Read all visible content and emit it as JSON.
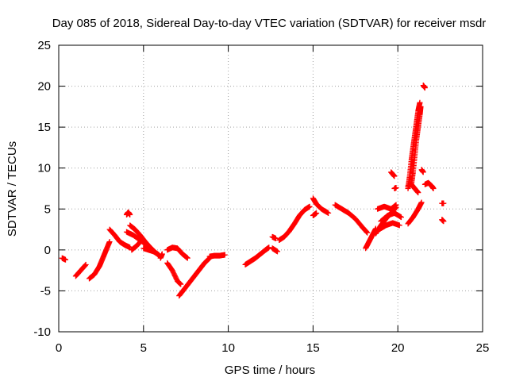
{
  "chart_data": {
    "type": "scatter",
    "title": "Day 085 of 2018, Sidereal Day-to-day VTEC variation (SDTVAR) for receiver msdr",
    "xlabel": "GPS time / hours",
    "ylabel": "SDTVAR / TECUs",
    "xlim": [
      0,
      25
    ],
    "ylim": [
      -10,
      25
    ],
    "xticks": [
      0,
      5,
      10,
      15,
      20,
      25
    ],
    "yticks": [
      -10,
      -5,
      0,
      5,
      10,
      15,
      20,
      25
    ],
    "grid": true,
    "marker": "+",
    "color": "#ff0000",
    "segments": [
      [
        [
          0.2,
          -1.0
        ],
        [
          0.4,
          -1.2
        ]
      ],
      [
        [
          1.0,
          -3.2
        ],
        [
          1.3,
          -2.5
        ],
        [
          1.6,
          -1.8
        ]
      ],
      [
        [
          1.8,
          -3.5
        ],
        [
          2.1,
          -3.0
        ],
        [
          2.4,
          -2.0
        ],
        [
          2.6,
          -1.0
        ],
        [
          2.8,
          0.0
        ],
        [
          3.0,
          1.0
        ]
      ],
      [
        [
          3.0,
          2.5
        ],
        [
          3.3,
          1.8
        ],
        [
          3.6,
          1.0
        ],
        [
          3.9,
          0.6
        ],
        [
          4.2,
          0.3
        ]
      ],
      [
        [
          4.0,
          4.3
        ],
        [
          4.1,
          4.6
        ],
        [
          4.2,
          4.3
        ]
      ],
      [
        [
          4.0,
          2.2
        ],
        [
          4.4,
          1.8
        ],
        [
          4.8,
          1.2
        ],
        [
          5.2,
          0.6
        ]
      ],
      [
        [
          4.3,
          0.0
        ],
        [
          4.6,
          0.5
        ],
        [
          4.9,
          1.2
        ]
      ],
      [
        [
          4.2,
          3.0
        ],
        [
          4.5,
          2.5
        ],
        [
          4.8,
          1.8
        ],
        [
          5.1,
          1.0
        ],
        [
          5.4,
          0.3
        ],
        [
          5.7,
          -0.3
        ],
        [
          6.0,
          -0.8
        ]
      ],
      [
        [
          5.0,
          0.2
        ],
        [
          5.3,
          0.0
        ],
        [
          5.6,
          -0.2
        ],
        [
          5.9,
          -0.6
        ]
      ],
      [
        [
          6.0,
          -1.0
        ],
        [
          6.1,
          -0.5
        ]
      ],
      [
        [
          6.4,
          0.0
        ],
        [
          6.7,
          0.3
        ],
        [
          7.0,
          0.2
        ],
        [
          7.3,
          -0.5
        ],
        [
          7.6,
          -1.0
        ]
      ],
      [
        [
          6.4,
          -1.6
        ],
        [
          6.7,
          -2.5
        ],
        [
          7.0,
          -3.8
        ],
        [
          7.2,
          -4.2
        ]
      ],
      [
        [
          7.1,
          -5.6
        ],
        [
          7.4,
          -4.8
        ],
        [
          7.7,
          -4.0
        ],
        [
          8.0,
          -3.2
        ],
        [
          8.3,
          -2.4
        ],
        [
          8.6,
          -1.6
        ],
        [
          8.9,
          -1.0
        ]
      ],
      [
        [
          8.9,
          -0.8
        ],
        [
          9.2,
          -0.7
        ],
        [
          9.5,
          -0.7
        ],
        [
          9.8,
          -0.6
        ]
      ],
      [
        [
          11.0,
          -1.8
        ],
        [
          11.3,
          -1.4
        ],
        [
          11.6,
          -1.0
        ],
        [
          11.9,
          -0.5
        ],
        [
          12.2,
          0.0
        ],
        [
          12.4,
          0.3
        ]
      ],
      [
        [
          12.6,
          0.2
        ],
        [
          12.9,
          -0.2
        ]
      ],
      [
        [
          12.6,
          1.6
        ],
        [
          12.8,
          1.4
        ]
      ],
      [
        [
          13.0,
          1.2
        ],
        [
          13.3,
          1.6
        ],
        [
          13.6,
          2.3
        ],
        [
          13.9,
          3.2
        ],
        [
          14.2,
          4.2
        ],
        [
          14.5,
          4.9
        ],
        [
          14.8,
          5.3
        ]
      ],
      [
        [
          15.0,
          6.3
        ],
        [
          15.2,
          5.6
        ],
        [
          15.5,
          5.0
        ],
        [
          15.9,
          4.5
        ]
      ],
      [
        [
          15.0,
          4.2
        ],
        [
          15.2,
          4.5
        ]
      ],
      [
        [
          16.3,
          5.5
        ],
        [
          16.7,
          5.0
        ],
        [
          17.1,
          4.5
        ],
        [
          17.5,
          3.8
        ],
        [
          17.9,
          2.8
        ],
        [
          18.2,
          2.1
        ]
      ],
      [
        [
          18.1,
          0.2
        ],
        [
          18.3,
          1.0
        ],
        [
          18.5,
          1.8
        ],
        [
          18.7,
          2.6
        ]
      ],
      [
        [
          18.7,
          2.0
        ],
        [
          19.0,
          3.0
        ],
        [
          19.3,
          3.8
        ],
        [
          19.6,
          4.5
        ],
        [
          19.9,
          5.2
        ]
      ],
      [
        [
          18.8,
          5.0
        ],
        [
          19.2,
          5.3
        ],
        [
          19.6,
          5.0
        ],
        [
          19.9,
          5.5
        ]
      ],
      [
        [
          19.0,
          3.5
        ],
        [
          19.4,
          4.2
        ],
        [
          19.8,
          4.5
        ],
        [
          20.2,
          4.0
        ]
      ],
      [
        [
          18.9,
          2.5
        ],
        [
          19.3,
          3.0
        ],
        [
          19.7,
          3.3
        ],
        [
          20.1,
          3.0
        ]
      ],
      [
        [
          19.6,
          9.5
        ],
        [
          19.8,
          9.0
        ]
      ],
      [
        [
          19.8,
          7.5
        ],
        [
          19.9,
          7.6
        ]
      ],
      [
        [
          20.6,
          3.2
        ],
        [
          20.9,
          4.0
        ],
        [
          21.2,
          5.0
        ],
        [
          21.4,
          5.8
        ]
      ],
      [
        [
          20.6,
          7.5
        ],
        [
          20.7,
          9.0
        ],
        [
          20.8,
          11.0
        ],
        [
          20.9,
          12.5
        ],
        [
          21.0,
          14.0
        ],
        [
          21.1,
          15.5
        ],
        [
          21.2,
          17.0
        ],
        [
          21.3,
          18.0
        ]
      ],
      [
        [
          20.8,
          8.0
        ],
        [
          20.9,
          9.5
        ],
        [
          21.0,
          11.5
        ],
        [
          21.1,
          13.5
        ],
        [
          21.2,
          15.0
        ],
        [
          21.3,
          16.5
        ],
        [
          21.35,
          17.5
        ]
      ],
      [
        [
          20.6,
          7.8
        ],
        [
          20.8,
          8.0
        ],
        [
          21.0,
          7.5
        ],
        [
          21.2,
          7.0
        ]
      ],
      [
        [
          21.4,
          9.8
        ],
        [
          21.5,
          9.5
        ]
      ],
      [
        [
          21.5,
          20.1
        ],
        [
          21.6,
          19.8
        ]
      ],
      [
        [
          21.6,
          8.0
        ],
        [
          21.8,
          8.2
        ],
        [
          22.0,
          7.8
        ],
        [
          22.1,
          7.5
        ]
      ],
      [
        [
          22.6,
          5.7
        ],
        [
          22.7,
          5.7
        ]
      ],
      [
        [
          22.6,
          3.7
        ],
        [
          22.7,
          3.5
        ]
      ]
    ]
  }
}
